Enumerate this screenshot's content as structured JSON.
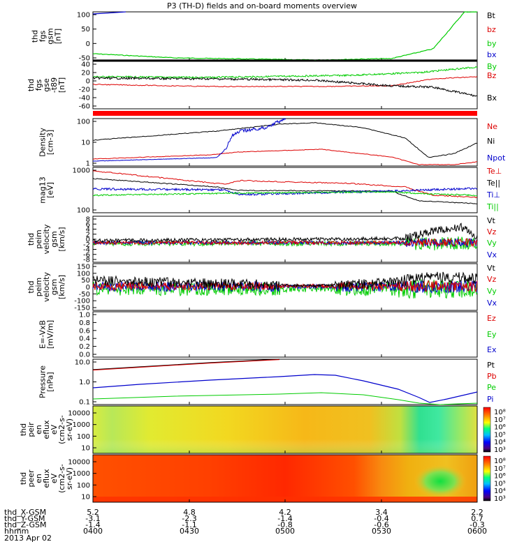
{
  "title": "P3 (TH-D) fields and on-board moments overview",
  "footer": {
    "rows": [
      {
        "label": "thd_X-GSM",
        "values": [
          "5.2",
          "4.8",
          "4.2",
          "3.4",
          "2.2"
        ]
      },
      {
        "label": "thd_Y-GSM",
        "values": [
          "-3.1",
          "-2.3",
          "-1.4",
          "-0.4",
          "0.7"
        ]
      },
      {
        "label": "thd_Z-GSM",
        "values": [
          "-1.4",
          "-1.1",
          "-0.8",
          "-0.6",
          "-0.3"
        ]
      },
      {
        "label": "hhmm",
        "values": [
          "0400",
          "0430",
          "0500",
          "0530",
          "0600"
        ]
      }
    ],
    "date": "2013 Apr 02"
  },
  "colors": {
    "black": "#000000",
    "red": "#dd0000",
    "green": "#00cc00",
    "blue": "#0000cc",
    "bright_red": "#ff0000",
    "bright_green": "#22dd22"
  },
  "chart_data": [
    {
      "type": "line",
      "ylabel": [
        "thd",
        "fgs",
        "gsm",
        "[nT]"
      ],
      "yticks": [
        "100",
        "50",
        "0",
        "-50"
      ],
      "ylim": [
        -70,
        110
      ],
      "series": [
        {
          "name": "Bt",
          "color": "#000000"
        },
        {
          "name": "bz",
          "color": "#dd0000"
        },
        {
          "name": "by",
          "color": "#00cc00"
        },
        {
          "name": "bx",
          "color": "#0000cc"
        }
      ]
    },
    {
      "type": "line",
      "ylabel": [
        "thd",
        "fgs",
        "gse",
        "-t89",
        "[nT]"
      ],
      "yticks": [
        "40",
        "20",
        "0",
        "-20",
        "-40",
        "-60"
      ],
      "ylim": [
        -70,
        45
      ],
      "series": [
        {
          "name": "By",
          "color": "#00cc00"
        },
        {
          "name": "Bz",
          "color": "#dd0000"
        },
        {
          "name": "Bx",
          "color": "#000000"
        }
      ]
    },
    {
      "type": "line",
      "ylabel": [
        "Density",
        "[cm-3]"
      ],
      "yticks": [
        "100",
        "10",
        "1"
      ],
      "scale": "log",
      "series": [
        {
          "name": "Ne",
          "color": "#dd0000"
        },
        {
          "name": "Ni",
          "color": "#000000"
        },
        {
          "name": "Npot",
          "color": "#0000cc"
        }
      ]
    },
    {
      "type": "line",
      "ylabel": [
        "mag13",
        "[eV]"
      ],
      "yticks": [
        "1000",
        "100"
      ],
      "scale": "log",
      "series": [
        {
          "name": "Te⊥",
          "color": "#dd0000"
        },
        {
          "name": "Te||",
          "color": "#000000"
        },
        {
          "name": "Ti⊥",
          "color": "#0000cc"
        },
        {
          "name": "Ti||",
          "color": "#00cc00"
        }
      ]
    },
    {
      "type": "line",
      "ylabel": [
        "thd",
        "peim",
        "velocity",
        "gsm",
        "[km/s]"
      ],
      "yticks": [
        "8",
        "6",
        "4",
        "2",
        "0",
        "-2",
        "-4",
        "-6",
        "-8"
      ],
      "ylim": [
        -8,
        8
      ],
      "series": [
        {
          "name": "Vt",
          "color": "#000000"
        },
        {
          "name": "Vz",
          "color": "#dd0000"
        },
        {
          "name": "Vy",
          "color": "#00cc00"
        },
        {
          "name": "Vx",
          "color": "#0000cc"
        }
      ]
    },
    {
      "type": "line",
      "ylabel": [
        "thd",
        "peim",
        "velocity",
        "gsm",
        "[km/s]"
      ],
      "yticks": [
        "150",
        "100",
        "50",
        "0",
        "-50",
        "-100",
        "-150"
      ],
      "ylim": [
        -150,
        150
      ],
      "series": [
        {
          "name": "Vt",
          "color": "#000000"
        },
        {
          "name": "Vz",
          "color": "#dd0000"
        },
        {
          "name": "Vy",
          "color": "#00cc00"
        },
        {
          "name": "Vx",
          "color": "#0000cc"
        }
      ]
    },
    {
      "type": "line",
      "ylabel": [
        "E=-VxB",
        "[mV/m]"
      ],
      "yticks": [
        "1.0",
        "0.8",
        "0.6",
        "0.4",
        "0.2",
        "0.0"
      ],
      "ylim": [
        0,
        1
      ],
      "series": [
        {
          "name": "Ez",
          "color": "#dd0000"
        },
        {
          "name": "Ey",
          "color": "#00cc00"
        },
        {
          "name": "Ex",
          "color": "#0000cc"
        }
      ]
    },
    {
      "type": "line",
      "ylabel": [
        "Pressure",
        "[nPa]"
      ],
      "yticks": [
        "10.0",
        "1.0",
        "0.1"
      ],
      "scale": "log",
      "series": [
        {
          "name": "Pt",
          "color": "#000000"
        },
        {
          "name": "Pb",
          "color": "#dd0000"
        },
        {
          "name": "Pe",
          "color": "#00cc00"
        },
        {
          "name": "Pi",
          "color": "#0000cc"
        }
      ]
    },
    {
      "type": "heatmap",
      "ylabel": [
        "thd",
        "peir",
        "en",
        "eflux",
        "eV",
        "(cm2-s-",
        "sr-eV)"
      ],
      "yticks": [
        "10000",
        "1000",
        "100",
        "10"
      ],
      "colorbar": [
        "10⁸",
        "10⁷",
        "10⁶",
        "10⁵",
        "10⁴",
        "10³"
      ]
    },
    {
      "type": "heatmap",
      "ylabel": [
        "thd",
        "peer",
        "en",
        "eflux",
        "eV",
        "(cm2-s-",
        "sr-eV)"
      ],
      "yticks": [
        "10000",
        "1000",
        "100",
        "10"
      ],
      "colorbar": [
        "10⁸",
        "10⁷",
        "10⁶",
        "10⁵",
        "10⁴",
        "10³"
      ]
    }
  ]
}
